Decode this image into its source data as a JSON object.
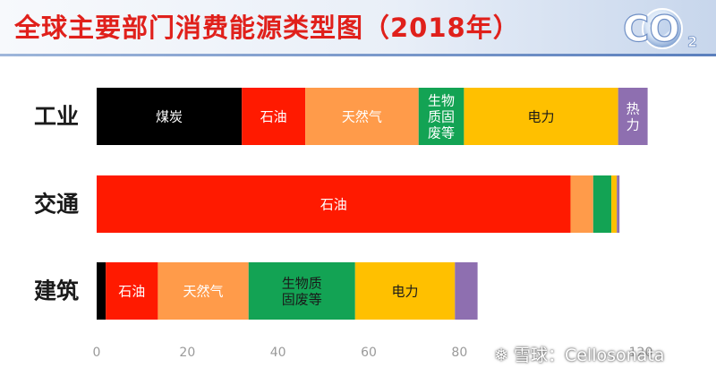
{
  "header": {
    "title": "全球主要部门消费能源类型图（2018年）"
  },
  "logo": {
    "icon": "co2-globe-icon",
    "text": "CO",
    "subscript": "2"
  },
  "watermark": {
    "icon": "snowball-icon",
    "text": "雪球：Cellosonata"
  },
  "chart_data": {
    "type": "bar",
    "orientation": "horizontal",
    "stacked": true,
    "title": "全球主要部门消费能源类型图（2018年）",
    "categories": [
      "工业",
      "交通",
      "建筑"
    ],
    "xlim": [
      0,
      120
    ],
    "xticks": [
      0,
      20,
      40,
      60,
      80,
      120
    ],
    "grid": false,
    "bars": [
      {
        "category": "工业",
        "segments": [
          {
            "label": "煤炭",
            "value": 32,
            "color": "#000000",
            "text_color": "#ffffff"
          },
          {
            "label": "石油",
            "value": 14,
            "color": "#ff1a00",
            "text_color": "#ffffff"
          },
          {
            "label": "天然气",
            "value": 25,
            "color": "#ff9b4a",
            "text_color": "#ffffff"
          },
          {
            "label": "生物\n质固\n废等",
            "value": 10,
            "color": "#13a354",
            "text_color": "#ffffff"
          },
          {
            "label": "电力",
            "value": 34,
            "color": "#ffc000",
            "text_color": "#1a1a1a"
          },
          {
            "label": "热\n力",
            "value": 6.5,
            "color": "#8e6fb0",
            "text_color": "#ffffff"
          }
        ]
      },
      {
        "category": "交通",
        "segments": [
          {
            "label": "石油",
            "value": 104.5,
            "color": "#ff1a00",
            "text_color": "#ffffff"
          },
          {
            "label": "",
            "value": 5,
            "color": "#ff9b4a",
            "text_color": "#ffffff"
          },
          {
            "label": "",
            "value": 4,
            "color": "#13a354",
            "text_color": "#ffffff"
          },
          {
            "label": "",
            "value": 1.2,
            "color": "#ffc000",
            "text_color": "#1a1a1a"
          },
          {
            "label": "",
            "value": 0.6,
            "color": "#8e6fb0",
            "text_color": "#ffffff"
          }
        ]
      },
      {
        "category": "建筑",
        "segments": [
          {
            "label": "",
            "value": 2,
            "color": "#000000",
            "text_color": "#ffffff"
          },
          {
            "label": "石油",
            "value": 11.5,
            "color": "#ff1a00",
            "text_color": "#ffffff"
          },
          {
            "label": "天然气",
            "value": 20,
            "color": "#ff9b4a",
            "text_color": "#ffffff"
          },
          {
            "label": "生物质\n固废等",
            "value": 23.5,
            "color": "#13a354",
            "text_color": "#1a1a1a"
          },
          {
            "label": "电力",
            "value": 22,
            "color": "#ffc000",
            "text_color": "#1a1a1a"
          },
          {
            "label": "",
            "value": 5,
            "color": "#8e6fb0",
            "text_color": "#ffffff"
          }
        ]
      }
    ]
  }
}
